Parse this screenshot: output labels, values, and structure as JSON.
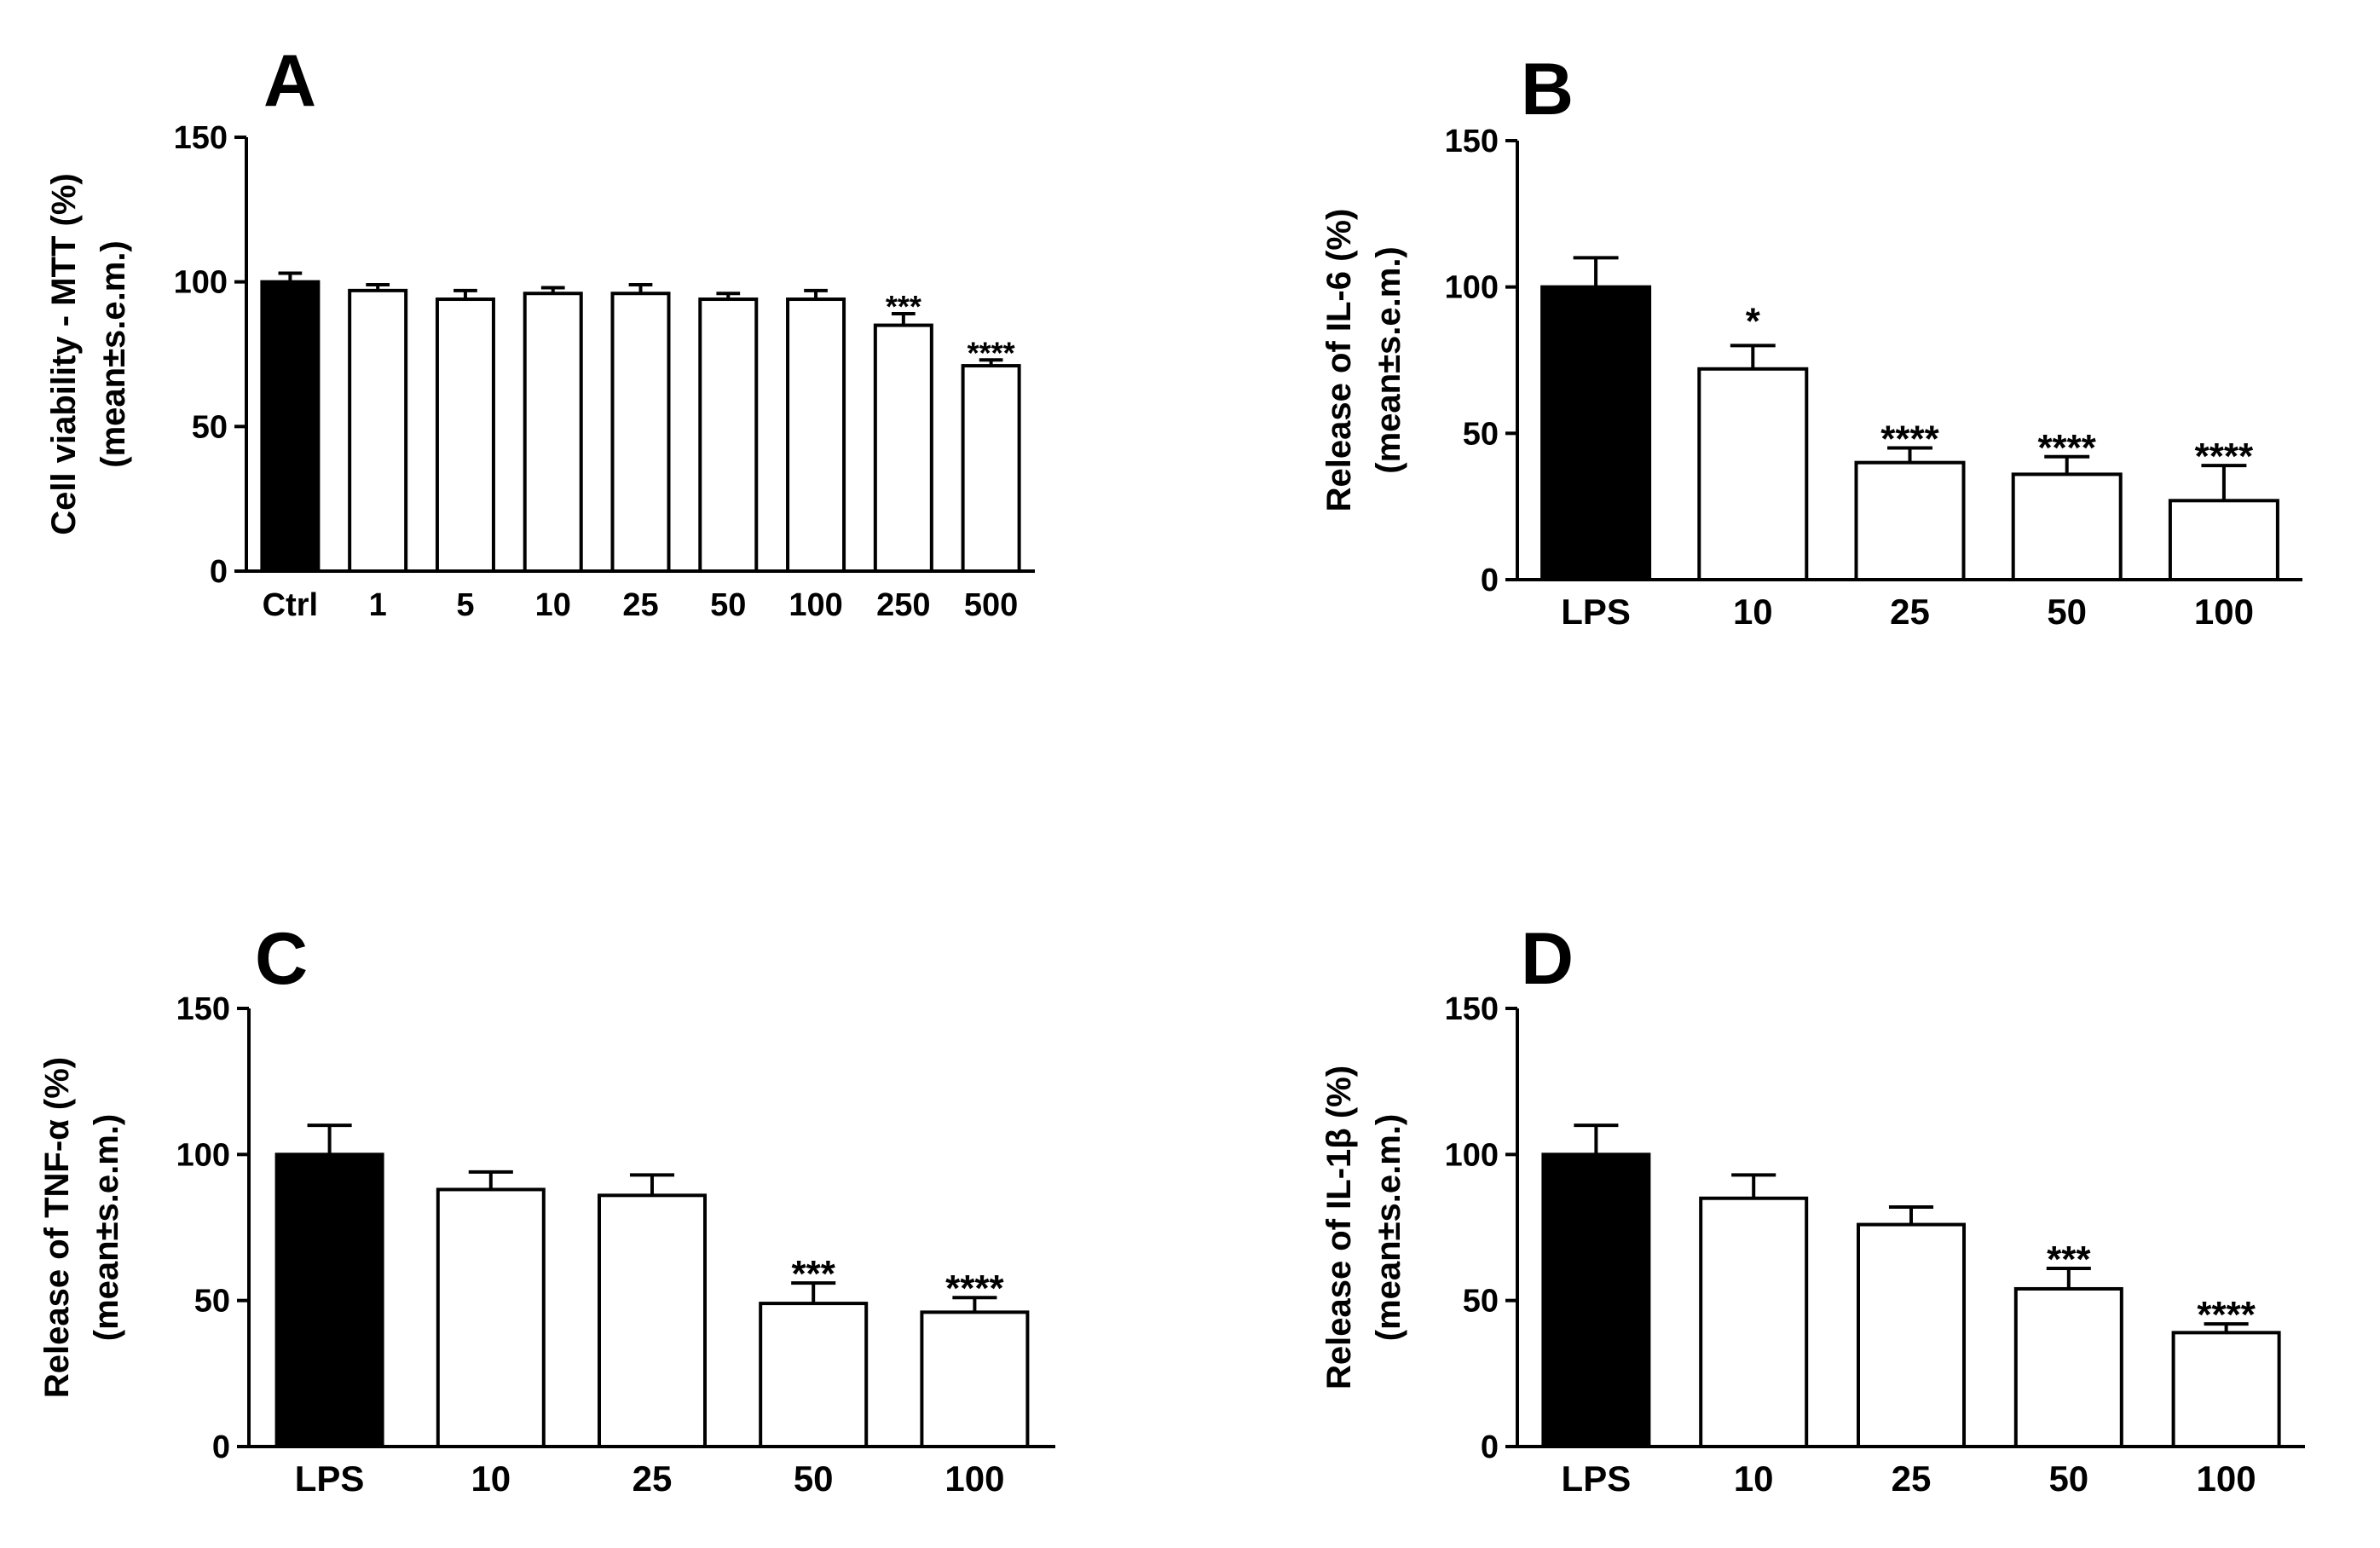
{
  "colors": {
    "control_fill": "#000000",
    "treated_fill": "#ffffff",
    "stroke": "#000000"
  },
  "chart_data": [
    {
      "panel": "A",
      "type": "bar",
      "ylabel_lines": [
        "Cell viability - MTT (%)",
        "(mean±s.e.m.)"
      ],
      "ylim": [
        0,
        150
      ],
      "yticks": [
        0,
        50,
        100,
        150
      ],
      "categories": [
        "Ctrl",
        "1",
        "5",
        "10",
        "25",
        "50",
        "100",
        "250",
        "500"
      ],
      "values": [
        100,
        97,
        94,
        96,
        96,
        94,
        94,
        85,
        71
      ],
      "errors": [
        3,
        2,
        3,
        2,
        3,
        2,
        3,
        4,
        2
      ],
      "significance": [
        "",
        "",
        "",
        "",
        "",
        "",
        "",
        "***",
        "****"
      ],
      "filled": [
        true,
        false,
        false,
        false,
        false,
        false,
        false,
        false,
        false
      ]
    },
    {
      "panel": "B",
      "type": "bar",
      "ylabel_lines": [
        "Release of IL-6 (%)",
        "(mean±s.e.m.)"
      ],
      "ylim": [
        0,
        150
      ],
      "yticks": [
        0,
        50,
        100,
        150
      ],
      "categories": [
        "LPS",
        "10",
        "25",
        "50",
        "100"
      ],
      "values": [
        100,
        72,
        40,
        36,
        27
      ],
      "errors": [
        10,
        8,
        5,
        6,
        12
      ],
      "significance": [
        "",
        "*",
        "****",
        "****",
        "****"
      ],
      "filled": [
        true,
        false,
        false,
        false,
        false
      ]
    },
    {
      "panel": "C",
      "type": "bar",
      "ylabel_lines": [
        "Release of TNF-α (%)",
        "(mean±s.e.m.)"
      ],
      "ylim": [
        0,
        150
      ],
      "yticks": [
        0,
        50,
        100,
        150
      ],
      "categories": [
        "LPS",
        "10",
        "25",
        "50",
        "100"
      ],
      "values": [
        100,
        88,
        86,
        49,
        46
      ],
      "errors": [
        10,
        6,
        7,
        7,
        5
      ],
      "significance": [
        "",
        "",
        "",
        "***",
        "****"
      ],
      "filled": [
        true,
        false,
        false,
        false,
        false
      ]
    },
    {
      "panel": "D",
      "type": "bar",
      "ylabel_lines": [
        "Release of IL-1β (%)",
        "(mean±s.e.m.)"
      ],
      "ylim": [
        0,
        150
      ],
      "yticks": [
        0,
        50,
        100,
        150
      ],
      "categories": [
        "LPS",
        "10",
        "25",
        "50",
        "100"
      ],
      "values": [
        100,
        85,
        76,
        54,
        39
      ],
      "errors": [
        10,
        8,
        6,
        7,
        3
      ],
      "significance": [
        "",
        "",
        "",
        "***",
        "****"
      ],
      "filled": [
        true,
        false,
        false,
        false,
        false
      ]
    }
  ]
}
